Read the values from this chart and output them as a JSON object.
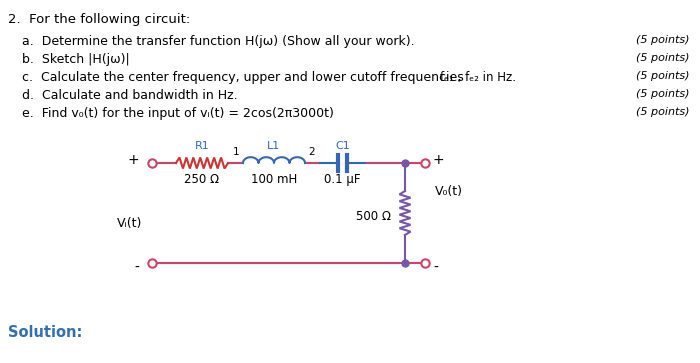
{
  "title_num": "2.",
  "title_text": "  For the following circuit:",
  "items": [
    {
      "letter": "a.",
      "indent": "   ",
      "text": "Determine the transfer function H(jω) (Show all your work).",
      "points": "(5 points)"
    },
    {
      "letter": "b.",
      "indent": "   ",
      "text": "Sketch |H(jω)|",
      "points": "(5 points)"
    },
    {
      "letter": "c.",
      "indent": "   ",
      "text": "Calculate the center frequency, upper and lower cutoff frequencies",
      "extra": "fₑ₁ , fₑ₂ in Hz.",
      "points": "(5 points)"
    },
    {
      "letter": "d.",
      "indent": "   ",
      "text": "Calculate and bandwidth in Hz.",
      "points": "(5 points)"
    },
    {
      "letter": "e.",
      "indent": "   ",
      "text": "Find v₀(t) for the input of vᵢ(t) = 2cos(2π3000t)",
      "points": "(5 points)"
    }
  ],
  "solution_text": "Solution:",
  "bg_color": "#ffffff",
  "text_color": "#000000",
  "blue_color": "#3070b0",
  "red_color": "#cc3344",
  "purple_color": "#7755aa",
  "comp_label_color": "#3366bb",
  "wire_color": "#cc4466",
  "resistor_color": "#cc3333",
  "inductor_color": "#3366bb",
  "cap_color": "#3366bb",
  "load_wire_color": "#7755aa",
  "load_resistor_color": "#7755aa",
  "circuit": {
    "R1_label": "R1",
    "L1_label": "L1",
    "C1_label": "C1",
    "R1_val": "250 Ω",
    "L1_val": "100 mH",
    "C1_val": "0.1 μF",
    "R2_val": "500 Ω",
    "Vo_label": "V₀(t)",
    "Vi_label": "Vᵢ(t)",
    "node1": "1",
    "node2": "2",
    "plus_left": "+",
    "minus_left": "-",
    "plus_right": "+",
    "minus_right": "-"
  }
}
